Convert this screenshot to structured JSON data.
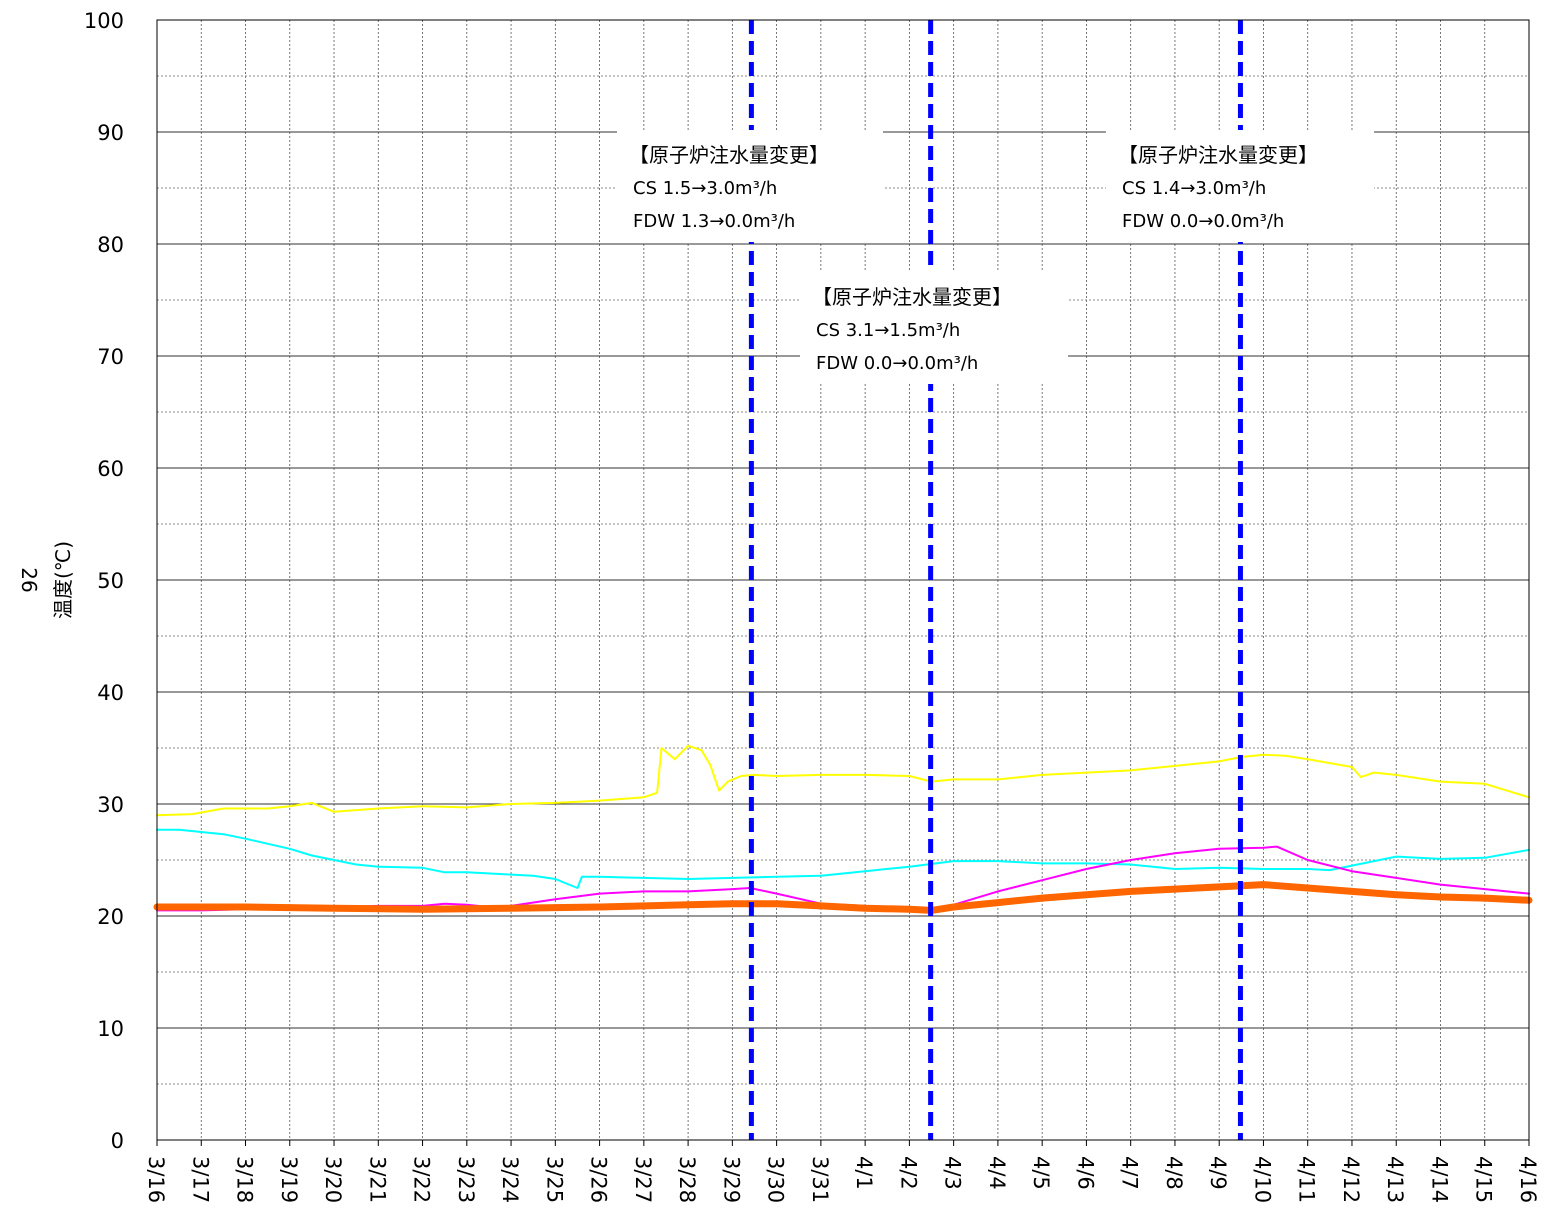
{
  "chart_data": {
    "type": "line",
    "ylabel": "温度(℃)",
    "ylabel_number": "26",
    "ylim": [
      0,
      100
    ],
    "yticks": [
      0,
      10,
      20,
      30,
      40,
      50,
      60,
      70,
      80,
      90,
      100
    ],
    "x_start": "3/16",
    "x_end": "4/16",
    "x_ticks": [
      "3/16",
      "3/17",
      "3/18",
      "3/19",
      "3/20",
      "3/21",
      "3/22",
      "3/23",
      "3/24",
      "3/25",
      "3/26",
      "3/27",
      "3/28",
      "3/29",
      "3/30",
      "3/31",
      "4/1",
      "4/2",
      "4/3",
      "4/4",
      "4/5",
      "4/6",
      "4/7",
      "4/8",
      "4/9",
      "4/10",
      "4/11",
      "4/12",
      "4/13",
      "4/14",
      "4/15",
      "4/16"
    ],
    "grid": true,
    "colors": {
      "yellow": "#ffff00",
      "cyan": "#00ffff",
      "magenta": "#ff00ff",
      "orange": "#ff6600",
      "event": "#0000ff"
    },
    "series": [
      {
        "color": "yellow",
        "width": 2,
        "points": [
          [
            0,
            29.0
          ],
          [
            0.8,
            29.1
          ],
          [
            1.5,
            29.6
          ],
          [
            2.5,
            29.6
          ],
          [
            3,
            29.8
          ],
          [
            3.5,
            30.1
          ],
          [
            4,
            29.3
          ],
          [
            5,
            29.6
          ],
          [
            6,
            29.8
          ],
          [
            7,
            29.7
          ],
          [
            8,
            30.0
          ],
          [
            9,
            30.1
          ],
          [
            10,
            30.3
          ],
          [
            11,
            30.6
          ],
          [
            11.3,
            31.0
          ],
          [
            11.4,
            35.0
          ],
          [
            11.7,
            34.0
          ],
          [
            12,
            35.2
          ],
          [
            12.3,
            34.8
          ],
          [
            12.5,
            33.5
          ],
          [
            12.7,
            31.2
          ],
          [
            12.9,
            32.0
          ],
          [
            13.2,
            32.5
          ],
          [
            13.5,
            32.6
          ],
          [
            14,
            32.5
          ],
          [
            15,
            32.6
          ],
          [
            16,
            32.6
          ],
          [
            17,
            32.5
          ],
          [
            17.5,
            32.0
          ],
          [
            18,
            32.2
          ],
          [
            19,
            32.2
          ],
          [
            20,
            32.6
          ],
          [
            21,
            32.8
          ],
          [
            22,
            33.0
          ],
          [
            23,
            33.4
          ],
          [
            24,
            33.8
          ],
          [
            24.5,
            34.2
          ],
          [
            25,
            34.4
          ],
          [
            25.5,
            34.3
          ],
          [
            26,
            34.0
          ],
          [
            27,
            33.3
          ],
          [
            27.2,
            32.4
          ],
          [
            27.5,
            32.8
          ],
          [
            28,
            32.6
          ],
          [
            29,
            32.0
          ],
          [
            30,
            31.8
          ],
          [
            31,
            30.6
          ]
        ]
      },
      {
        "color": "cyan",
        "width": 2,
        "points": [
          [
            0,
            27.7
          ],
          [
            0.5,
            27.7
          ],
          [
            1.5,
            27.3
          ],
          [
            2,
            26.9
          ],
          [
            3,
            26.0
          ],
          [
            3.5,
            25.4
          ],
          [
            4,
            25.0
          ],
          [
            4.5,
            24.6
          ],
          [
            5,
            24.4
          ],
          [
            6,
            24.3
          ],
          [
            6.5,
            23.9
          ],
          [
            7,
            23.9
          ],
          [
            8,
            23.7
          ],
          [
            8.5,
            23.6
          ],
          [
            9,
            23.3
          ],
          [
            9.5,
            22.5
          ],
          [
            9.6,
            23.5
          ],
          [
            10,
            23.5
          ],
          [
            11,
            23.4
          ],
          [
            12,
            23.3
          ],
          [
            13,
            23.4
          ],
          [
            14,
            23.5
          ],
          [
            15,
            23.6
          ],
          [
            16,
            24.0
          ],
          [
            17,
            24.4
          ],
          [
            18,
            24.9
          ],
          [
            19,
            24.9
          ],
          [
            20,
            24.7
          ],
          [
            21,
            24.7
          ],
          [
            22,
            24.6
          ],
          [
            23,
            24.2
          ],
          [
            24,
            24.3
          ],
          [
            25,
            24.2
          ],
          [
            26,
            24.2
          ],
          [
            26.5,
            24.1
          ],
          [
            27,
            24.5
          ],
          [
            28,
            25.3
          ],
          [
            29,
            25.1
          ],
          [
            30,
            25.2
          ],
          [
            31,
            25.9
          ]
        ]
      },
      {
        "color": "magenta",
        "width": 2,
        "points": [
          [
            0,
            20.5
          ],
          [
            1,
            20.5
          ],
          [
            2,
            20.6
          ],
          [
            3,
            20.7
          ],
          [
            4,
            20.8
          ],
          [
            5,
            20.9
          ],
          [
            6,
            20.9
          ],
          [
            6.5,
            21.1
          ],
          [
            7,
            21.0
          ],
          [
            7.5,
            20.8
          ],
          [
            8,
            20.9
          ],
          [
            9,
            21.5
          ],
          [
            10,
            22.0
          ],
          [
            11,
            22.2
          ],
          [
            12,
            22.2
          ],
          [
            13,
            22.4
          ],
          [
            13.4,
            22.5
          ],
          [
            14,
            22.0
          ],
          [
            15,
            21.1
          ],
          [
            16,
            20.9
          ],
          [
            17,
            20.6
          ],
          [
            17.5,
            20.5
          ],
          [
            18,
            21.0
          ],
          [
            19,
            22.2
          ],
          [
            20,
            23.2
          ],
          [
            21,
            24.2
          ],
          [
            22,
            25.0
          ],
          [
            23,
            25.6
          ],
          [
            24,
            26.0
          ],
          [
            25,
            26.1
          ],
          [
            25.3,
            26.2
          ],
          [
            26,
            25.0
          ],
          [
            27,
            24.0
          ],
          [
            28,
            23.4
          ],
          [
            29,
            22.8
          ],
          [
            30,
            22.4
          ],
          [
            31,
            22.0
          ]
        ]
      },
      {
        "color": "orange",
        "width": 7,
        "points": [
          [
            0,
            20.8
          ],
          [
            2,
            20.8
          ],
          [
            4,
            20.7
          ],
          [
            6,
            20.6
          ],
          [
            8,
            20.7
          ],
          [
            10,
            20.8
          ],
          [
            12,
            21.0
          ],
          [
            13,
            21.1
          ],
          [
            14,
            21.1
          ],
          [
            15,
            20.9
          ],
          [
            16,
            20.7
          ],
          [
            17,
            20.6
          ],
          [
            17.5,
            20.5
          ],
          [
            18,
            20.8
          ],
          [
            19,
            21.2
          ],
          [
            20,
            21.6
          ],
          [
            21,
            21.9
          ],
          [
            22,
            22.2
          ],
          [
            23,
            22.4
          ],
          [
            24,
            22.6
          ],
          [
            25,
            22.8
          ],
          [
            26,
            22.5
          ],
          [
            27,
            22.2
          ],
          [
            28,
            21.9
          ],
          [
            29,
            21.7
          ],
          [
            30,
            21.6
          ],
          [
            31,
            21.4
          ]
        ]
      }
    ],
    "events": [
      {
        "day": 13.43,
        "title": "【原子炉注水量変更】",
        "lines": [
          "CS 1.5→3.0m³/h",
          "FDW 1.3→0.0m³/h"
        ]
      },
      {
        "day": 17.48,
        "title": "【原子炉注水量変更】",
        "lines": [
          "CS 3.1→1.5m³/h",
          "FDW 0.0→0.0m³/h"
        ]
      },
      {
        "day": 24.48,
        "title": "【原子炉注水量変更】",
        "lines": [
          "CS 1.4→3.0m³/h",
          "FDW 0.0→0.0m³/h"
        ]
      }
    ]
  }
}
